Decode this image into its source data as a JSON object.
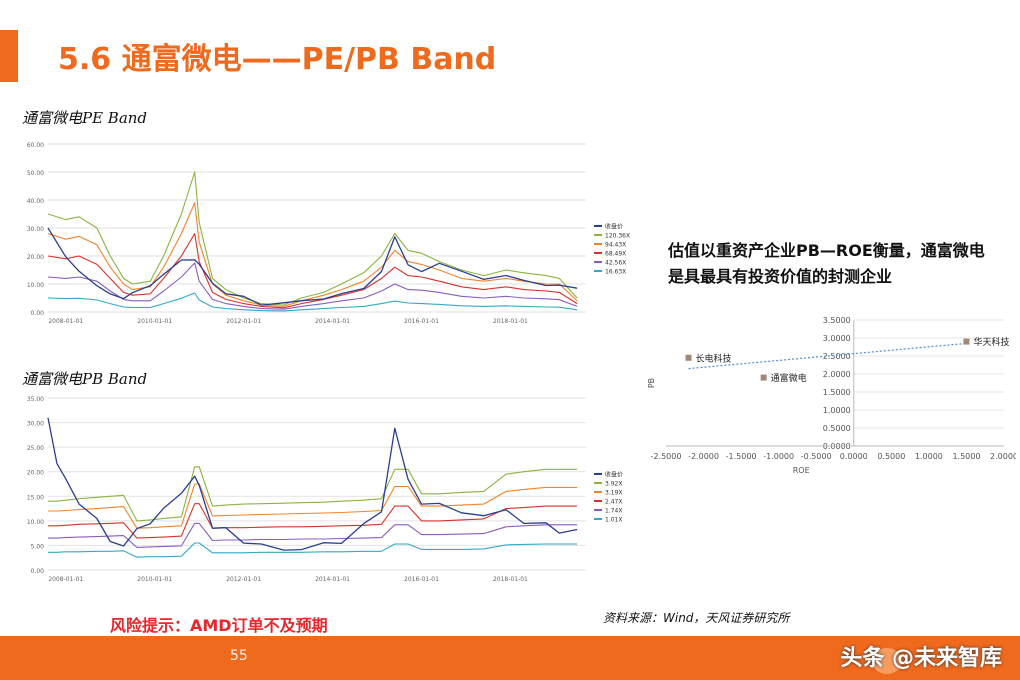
{
  "slide": {
    "title": "5.6 通富微电——PE/PB Band",
    "pe_label": "通富微电PE Band",
    "pb_label": "通富微电PB Band",
    "note": "估值以重资产企业PB—ROE衡量，通富微电是具最具有投资价值的封测企业",
    "risk": "风险提示：AMD订单不及预期",
    "source": "资料来源：Wind，天风证券研究所",
    "page_number": "55",
    "watermark": "头条 @未来智库"
  },
  "colors": {
    "accent": "#f06a1e",
    "price": "#2b3f8f",
    "band1": "#8ab43f",
    "band2": "#f2832c",
    "band3": "#d9302c",
    "band4": "#8a5cc2",
    "band5": "#34a9c8",
    "scatter": "#a0877a",
    "trend": "#4b8ed4"
  },
  "chart_data": [
    {
      "type": "line",
      "title": "通富微电PE Band",
      "ylim": [
        0,
        60
      ],
      "yticks": [
        "0.00",
        "10.00",
        "20.00",
        "30.00",
        "40.00",
        "50.00",
        "60.00"
      ],
      "xticks": [
        "2008-01-01",
        "2010-01-01",
        "2012-01-01",
        "2014-01-01",
        "2016-01-01",
        "2018-01-01"
      ],
      "legend": [
        "收盘价",
        "120.36X",
        "94.43X",
        "68.49X",
        "42.56X",
        "16.63X"
      ],
      "legend_position": "right",
      "x_years": [
        2007.6,
        2008.0,
        2008.3,
        2008.7,
        2009.0,
        2009.3,
        2009.5,
        2009.9,
        2010.2,
        2010.6,
        2010.9,
        2011.0,
        2011.3,
        2011.6,
        2012.0,
        2012.4,
        2012.9,
        2013.3,
        2013.8,
        2014.2,
        2014.7,
        2015.1,
        2015.4,
        2015.7,
        2016.0,
        2016.4,
        2016.9,
        2017.4,
        2017.9,
        2018.3,
        2018.8,
        2019.1,
        2019.5
      ],
      "series": [
        {
          "name": "收盘价",
          "values": [
            30,
            20,
            14,
            10,
            6,
            5,
            7,
            9,
            14,
            18,
            19,
            17,
            10,
            7,
            5,
            3,
            3,
            4,
            5,
            6,
            9,
            14,
            27,
            17,
            14,
            18,
            14,
            12,
            13,
            11,
            10,
            9,
            9
          ]
        },
        {
          "name": "120.36X",
          "values": [
            35,
            33,
            34,
            30,
            20,
            12,
            10,
            11,
            20,
            35,
            50,
            32,
            12,
            8,
            5,
            3,
            2.5,
            5,
            7,
            10,
            14,
            20,
            28,
            22,
            21,
            18,
            15,
            13,
            15,
            14,
            13,
            12,
            5
          ]
        },
        {
          "name": "94.43X",
          "values": [
            28,
            26,
            27,
            24,
            16,
            10,
            8,
            9,
            16,
            28,
            39,
            25,
            10,
            6,
            4,
            2.5,
            2,
            4,
            6,
            8,
            11,
            16,
            22,
            18,
            17,
            15,
            12,
            11,
            12,
            11,
            10,
            10,
            4
          ]
        },
        {
          "name": "68.49X",
          "values": [
            20,
            19,
            20,
            17,
            12,
            7,
            6,
            6.5,
            12,
            20,
            28,
            18,
            7,
            4.5,
            3,
            2,
            1.5,
            3,
            4.5,
            6,
            8,
            12,
            16,
            13,
            12.5,
            11,
            9,
            8,
            9,
            8,
            7.5,
            7,
            3
          ]
        },
        {
          "name": "42.56X",
          "values": [
            12.5,
            12,
            12.5,
            11,
            7.5,
            4.5,
            4,
            4,
            7.5,
            12.5,
            17.5,
            11,
            4.5,
            3,
            2,
            1.2,
            1,
            2,
            3,
            4,
            5,
            7.5,
            10,
            8,
            7.8,
            7,
            5.6,
            5,
            5.6,
            5,
            4.7,
            4.4,
            2
          ]
        },
        {
          "name": "16.63X",
          "values": [
            5,
            4.8,
            4.9,
            4.3,
            3,
            1.8,
            1.6,
            1.6,
            3,
            4.9,
            6.8,
            4.3,
            1.8,
            1.2,
            0.8,
            0.5,
            0.4,
            0.8,
            1.2,
            1.6,
            2,
            3,
            3.9,
            3.2,
            3,
            2.7,
            2.2,
            2,
            2.2,
            2,
            1.8,
            1.7,
            0.8
          ]
        }
      ]
    },
    {
      "type": "line",
      "title": "通富微电PB Band",
      "ylim": [
        0,
        35
      ],
      "yticks": [
        "0.00",
        "5.00",
        "10.00",
        "15.00",
        "20.00",
        "25.00",
        "30.00",
        "35.00"
      ],
      "xticks": [
        "2008-01-01",
        "2010-01-01",
        "2012-01-01",
        "2014-01-01",
        "2016-01-01",
        "2018-01-01"
      ],
      "legend": [
        "收盘价",
        "3.92X",
        "3.19X",
        "2.47X",
        "1.74X",
        "1.01X"
      ],
      "legend_position": "right",
      "x_years": [
        2007.6,
        2007.8,
        2008.0,
        2008.3,
        2008.7,
        2009.0,
        2009.3,
        2009.6,
        2009.9,
        2010.2,
        2010.6,
        2010.9,
        2011.0,
        2011.3,
        2011.6,
        2012.0,
        2012.4,
        2012.9,
        2013.3,
        2013.8,
        2014.2,
        2014.7,
        2015.1,
        2015.4,
        2015.7,
        2016.0,
        2016.4,
        2016.9,
        2017.4,
        2017.9,
        2018.3,
        2018.8,
        2019.1,
        2019.5
      ],
      "series": [
        {
          "name": "收盘价",
          "values": [
            31,
            22,
            18,
            14,
            10,
            6,
            5,
            8,
            10,
            12,
            16,
            19,
            17,
            9,
            8,
            6,
            5,
            4,
            4.5,
            5,
            6,
            9,
            12,
            29,
            18,
            14,
            13,
            12,
            11,
            12,
            10,
            9,
            8,
            8
          ]
        },
        {
          "name": "3.92X",
          "values": [
            14,
            14,
            14.2,
            14.5,
            14.8,
            15,
            15.2,
            10,
            10.2,
            10.5,
            10.8,
            21,
            21,
            13,
            13.2,
            13.4,
            13.5,
            13.6,
            13.7,
            13.8,
            14,
            14.2,
            14.5,
            20.5,
            20.5,
            15.5,
            15.5,
            15.8,
            16,
            19.5,
            20,
            20.5,
            20.5,
            20.5
          ]
        },
        {
          "name": "3.19X",
          "values": [
            12,
            12,
            12.1,
            12.3,
            12.5,
            12.7,
            12.9,
            8.5,
            8.6,
            8.8,
            9,
            17.5,
            17.5,
            11,
            11.1,
            11.2,
            11.3,
            11.4,
            11.5,
            11.6,
            11.7,
            11.9,
            12.1,
            17,
            17,
            13,
            13,
            13.2,
            13.4,
            16,
            16.4,
            16.8,
            16.8,
            16.8
          ]
        },
        {
          "name": "2.47X",
          "values": [
            9,
            9,
            9.1,
            9.3,
            9.4,
            9.5,
            9.6,
            6.5,
            6.6,
            6.7,
            6.9,
            13.5,
            13.5,
            8.5,
            8.6,
            8.6,
            8.7,
            8.8,
            8.8,
            8.9,
            9,
            9.1,
            9.3,
            13,
            13,
            10,
            10,
            10.2,
            10.4,
            12.5,
            12.7,
            13,
            13,
            13
          ]
        },
        {
          "name": "1.74X",
          "values": [
            6.5,
            6.5,
            6.6,
            6.7,
            6.8,
            6.9,
            7,
            4.6,
            4.7,
            4.8,
            4.9,
            9.5,
            9.5,
            6,
            6.1,
            6.1,
            6.2,
            6.2,
            6.3,
            6.3,
            6.4,
            6.5,
            6.6,
            9.2,
            9.2,
            7.2,
            7.2,
            7.3,
            7.4,
            8.8,
            9,
            9.2,
            9.2,
            9.2
          ]
        },
        {
          "name": "1.01X",
          "values": [
            3.6,
            3.6,
            3.7,
            3.7,
            3.8,
            3.8,
            3.9,
            2.6,
            2.7,
            2.7,
            2.8,
            5.5,
            5.5,
            3.5,
            3.5,
            3.5,
            3.6,
            3.6,
            3.6,
            3.7,
            3.7,
            3.8,
            3.8,
            5.3,
            5.3,
            4.2,
            4.2,
            4.2,
            4.3,
            5.1,
            5.2,
            5.3,
            5.3,
            5.3
          ]
        }
      ]
    },
    {
      "type": "scatter",
      "xlabel": "ROE",
      "ylabel": "PB",
      "xlim": [
        -2.5,
        2.0
      ],
      "ylim": [
        0,
        3.5
      ],
      "xticks": [
        "-2.5000",
        "-2.0000",
        "-1.5000",
        "-1.0000",
        "-0.5000",
        "0.0000",
        "0.5000",
        "1.0000",
        "1.5000",
        "2.0000"
      ],
      "yticks": [
        "0.0000",
        "0.5000",
        "1.0000",
        "1.5000",
        "2.0000",
        "2.5000",
        "3.0000",
        "3.5000"
      ],
      "points": [
        {
          "label": "长电科技",
          "x": -2.2,
          "y": 2.45
        },
        {
          "label": "通富微电",
          "x": -1.2,
          "y": 1.9
        },
        {
          "label": "华天科技",
          "x": 1.5,
          "y": 2.9
        }
      ],
      "trendline": {
        "x": [
          -2.2,
          1.5
        ],
        "y": [
          2.15,
          2.85
        ]
      }
    }
  ]
}
